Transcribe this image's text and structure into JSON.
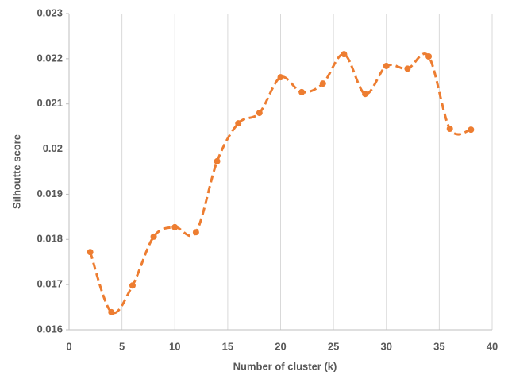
{
  "chart_data": {
    "type": "line",
    "x_label": "Number of cluster (k)",
    "y_label": "Silhoutte score",
    "x": [
      2,
      4,
      6,
      8,
      10,
      12,
      14,
      16,
      18,
      20,
      22,
      24,
      26,
      28,
      30,
      32,
      34,
      36,
      38
    ],
    "series": [
      {
        "name": "Silhoutte score",
        "color": "#ed7d31",
        "values": [
          0.01772,
          0.01639,
          0.01698,
          0.01806,
          0.01827,
          0.01816,
          0.01973,
          0.02057,
          0.0208,
          0.02159,
          0.02126,
          0.02145,
          0.0221,
          0.02122,
          0.02184,
          0.02178,
          0.02205,
          0.02045,
          0.02043
        ]
      }
    ],
    "xlim": [
      0,
      40
    ],
    "xticks": [
      0,
      5,
      10,
      15,
      20,
      25,
      30,
      35,
      40
    ],
    "ylim": [
      0.016,
      0.023
    ],
    "yticks": [
      0.016,
      0.017,
      0.018,
      0.019,
      0.02,
      0.021,
      0.022,
      0.023
    ],
    "grid": "x",
    "smooth": true,
    "dashed": true,
    "markers": true
  }
}
